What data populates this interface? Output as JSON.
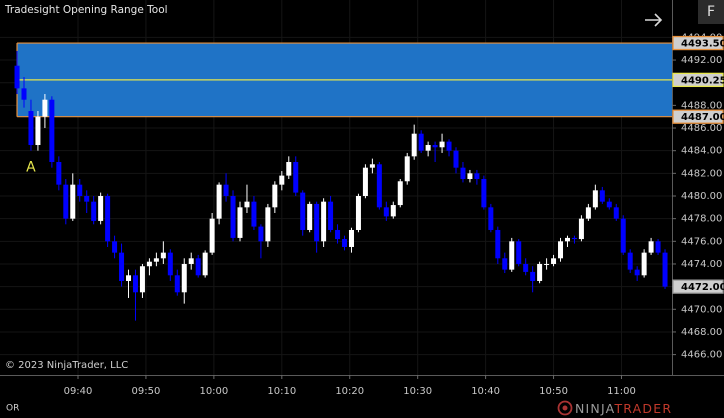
{
  "title": "Tradesight Opening Range Tool",
  "copyright": "© 2023 NinjaTrader, LLC",
  "tab": "OR",
  "button": "F",
  "logo": [
    "NINJA",
    "TRADER"
  ],
  "chart_data": {
    "type": "candlestick",
    "up_color": "#ffffff",
    "down_color": "#0000ff",
    "grid": true,
    "annotations": [
      {
        "text": "A",
        "bar": 3
      }
    ],
    "x": [
      1,
      2,
      3,
      4,
      5,
      6,
      7,
      8,
      9,
      10,
      11,
      12,
      13,
      14,
      15,
      16,
      17,
      18,
      19,
      20,
      21,
      22,
      23,
      24,
      25,
      26,
      27,
      28,
      29,
      30,
      31,
      32,
      33,
      34,
      35,
      36,
      37,
      38,
      39,
      40,
      41,
      42,
      43,
      44,
      45,
      46,
      47,
      48,
      49,
      50,
      51,
      52,
      53,
      54,
      55,
      56,
      57,
      58,
      59,
      60,
      61,
      62,
      63,
      64,
      65,
      66,
      67,
      68,
      69,
      70,
      71,
      72,
      73,
      74,
      75,
      76,
      77,
      78,
      79,
      80,
      81,
      82,
      83,
      84,
      85,
      86,
      87,
      88,
      89,
      90,
      91,
      92,
      93,
      94
    ],
    "open": [
      4491.5,
      4489.5,
      4487.5,
      4484.5,
      4487,
      4488.5,
      4483,
      4481,
      4478,
      4481,
      4480,
      4479.5,
      4477.8,
      4480,
      4476,
      4475,
      4472.5,
      4473,
      4471.5,
      4473.8,
      4474.2,
      4474.5,
      4475,
      4473,
      4471.5,
      4474,
      4474.5,
      4473,
      4475,
      4478,
      4481,
      4480,
      4476.3,
      4479,
      4479.5,
      4477.3,
      4476,
      4479,
      4481,
      4481.8,
      4483,
      4480.3,
      4477,
      4479.3,
      4476,
      4479.5,
      4477,
      4476.2,
      4475.5,
      4477,
      4480,
      4482.5,
      4482.8,
      4479,
      4478.2,
      4479.2,
      4481.3,
      4483.5,
      4485.5,
      4484,
      4484.5,
      4484.3,
      4484.8,
      4484,
      4482.5,
      4481.5,
      4482,
      4481.5,
      4479,
      4477,
      4474.5,
      4473.5,
      4476,
      4474,
      4473.3,
      4472.5,
      4474,
      4474,
      4474.5,
      4476,
      4476.3,
      4476.2,
      4478,
      4479,
      4480.5,
      4479.5,
      4479,
      4478,
      4475,
      4473.5,
      4473,
      4475,
      4476,
      4475
    ],
    "high": [
      4492.8,
      4490.5,
      4488.5,
      4487.5,
      4489,
      4488.8,
      4483.5,
      4481.5,
      4482,
      4481.5,
      4480.5,
      4480,
      4480.3,
      4480.2,
      4476.5,
      4475.8,
      4473.5,
      4473.5,
      4474,
      4474.5,
      4475,
      4476,
      4475.3,
      4473.5,
      4474.5,
      4475,
      4474.8,
      4475.2,
      4478.5,
      4481.2,
      4482,
      4480.5,
      4479.5,
      4481,
      4480,
      4477.5,
      4479.3,
      4481.3,
      4482.2,
      4483.5,
      4483.5,
      4480.5,
      4479.5,
      4479.5,
      4479.8,
      4480,
      4477.5,
      4476.5,
      4477.2,
      4480.2,
      4482.8,
      4483.3,
      4483,
      4479.5,
      4479.5,
      4481.5,
      4483.8,
      4486.3,
      4485.8,
      4484.8,
      4484.8,
      4485.5,
      4485,
      4484.3,
      4483,
      4482.3,
      4482.3,
      4481.8,
      4479.3,
      4477.3,
      4475,
      4476.3,
      4476.2,
      4474.5,
      4473.8,
      4474.2,
      4474.5,
      4474.8,
      4476.3,
      4476.5,
      4476.5,
      4478.3,
      4479.3,
      4481,
      4480.8,
      4479.8,
      4479.3,
      4478.3,
      4475.3,
      4473.8,
      4475.3,
      4476.3,
      4476.2,
      4475.3
    ],
    "low": [
      4489,
      4487.8,
      4484,
      4484,
      4486,
      4482.5,
      4480.5,
      4477.5,
      4477.8,
      4479.5,
      4478.5,
      4477.5,
      4477.5,
      4475.5,
      4474.5,
      4472,
      4471,
      4469,
      4471,
      4473,
      4473.8,
      4474,
      4472.5,
      4471.2,
      4470.5,
      4473.5,
      4472.8,
      4472.8,
      4474.8,
      4477.5,
      4479.5,
      4476,
      4476,
      4478.5,
      4477,
      4474.5,
      4475.5,
      4478.5,
      4480.5,
      4481.5,
      4480,
      4476.5,
      4476.8,
      4475,
      4475.5,
      4476.8,
      4475.8,
      4475.2,
      4475,
      4476.8,
      4479.8,
      4482,
      4478.8,
      4477.8,
      4478,
      4479,
      4481,
      4483.2,
      4483.8,
      4483.5,
      4483,
      4483.8,
      4483.5,
      4482,
      4481.2,
      4481.2,
      4481,
      4478.8,
      4476.8,
      4474,
      4473.2,
      4473.3,
      4473.8,
      4473,
      4471.5,
      4472.3,
      4473.5,
      4473.8,
      4474.2,
      4475.5,
      4475.8,
      4476,
      4477.8,
      4478.8,
      4479.3,
      4478.8,
      4477.8,
      4474.8,
      4473.2,
      4472.5,
      4472.8,
      4474.8,
      4474.8,
      4471.8
    ],
    "close": [
      4489.5,
      4488.5,
      4484.5,
      4487,
      4488.5,
      4483,
      4481,
      4478,
      4481,
      4480,
      4479.5,
      4477.8,
      4480,
      4476,
      4475,
      4472.5,
      4473,
      4471.5,
      4473.8,
      4474.2,
      4474.5,
      4475,
      4473,
      4471.5,
      4474,
      4474.5,
      4473,
      4475,
      4478,
      4481,
      4480,
      4476.3,
      4479,
      4479.5,
      4477.3,
      4476,
      4479,
      4481,
      4481.8,
      4483,
      4480.3,
      4477,
      4479.3,
      4476,
      4479.5,
      4477,
      4476.2,
      4475.5,
      4477,
      4480,
      4482.5,
      4482.8,
      4479,
      4478.2,
      4479.2,
      4481.3,
      4483.5,
      4485.5,
      4484,
      4484.5,
      4484.3,
      4484.8,
      4484,
      4482.5,
      4481.5,
      4482,
      4481.5,
      4479,
      4477,
      4474.5,
      4473.5,
      4476,
      4474,
      4473.3,
      4472.5,
      4474,
      4474,
      4474.5,
      4476,
      4476.3,
      4476.2,
      4478,
      4479,
      4480.5,
      4479.5,
      4479,
      4478,
      4475,
      4473.5,
      4473,
      4475,
      4476,
      4475,
      4472
    ],
    "xlim": [
      -0.87,
      95
    ],
    "xticks": [
      {
        "value": 9.75,
        "label": "09:40"
      },
      {
        "value": 19.5,
        "label": "09:50"
      },
      {
        "value": 29.25,
        "label": "10:00"
      },
      {
        "value": 39,
        "label": "10:10"
      },
      {
        "value": 48.75,
        "label": "10:20"
      },
      {
        "value": 58.5,
        "label": "10:30"
      },
      {
        "value": 68.25,
        "label": "10:40"
      },
      {
        "value": 78,
        "label": "10:50"
      },
      {
        "value": 87.75,
        "label": "11:00"
      }
    ],
    "ylim": [
      4464.2,
      4497.3
    ],
    "yticks": [
      {
        "value": 4466,
        "label": "4466.00"
      },
      {
        "value": 4468,
        "label": "4468.00"
      },
      {
        "value": 4470,
        "label": "4470.00"
      },
      {
        "value": 4472,
        "label": "4472.00"
      },
      {
        "value": 4474,
        "label": "4474.00"
      },
      {
        "value": 4476,
        "label": "4476.00"
      },
      {
        "value": 4478,
        "label": "4478.00"
      },
      {
        "value": 4480,
        "label": "4480.00"
      },
      {
        "value": 4482,
        "label": "4482.00"
      },
      {
        "value": 4484,
        "label": "4484.00"
      },
      {
        "value": 4486,
        "label": "4486.00"
      },
      {
        "value": 4488,
        "label": "4488.00"
      },
      {
        "value": 4490,
        "label": "4490.00"
      },
      {
        "value": 4492,
        "label": "4492.00"
      },
      {
        "value": 4494,
        "label": "4494.00"
      }
    ],
    "opening_range": {
      "fill": "#1f73c6",
      "edge_color": "#e8913c",
      "mid_color": "#e6e64c"
    },
    "price_markers": [
      {
        "value": 4493.5,
        "label": "4493.50",
        "color": "#e8913c"
      },
      {
        "value": 4490.25,
        "label": "4490.25",
        "color": "#e6e64c"
      },
      {
        "value": 4487,
        "label": "4487.00",
        "color": "#e8913c"
      },
      {
        "value": 4472,
        "label": "4472.00",
        "color": "#9a9a9a"
      }
    ]
  }
}
